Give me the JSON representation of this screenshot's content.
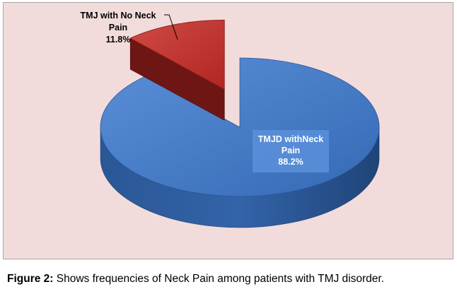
{
  "chart_data": {
    "type": "pie",
    "style": "3d-exploded",
    "slices": [
      {
        "label_lines": [
          "TMJD withNeck",
          "Pain",
          "88.2%"
        ],
        "value": 88.2,
        "color": "#3d73c2",
        "side_color": "#27508c",
        "label_placement": "inside"
      },
      {
        "label_lines": [
          "TMJ with No Neck",
          "Pain",
          "11.8%"
        ],
        "value": 11.8,
        "color": "#c0302c",
        "side_color": "#6e1614",
        "label_placement": "outside-leader"
      }
    ],
    "background": "#f2dcdb"
  },
  "caption": {
    "bold": "Figure 2:",
    "text": " Shows frequencies of Neck Pain among patients with TMJ disorder."
  }
}
